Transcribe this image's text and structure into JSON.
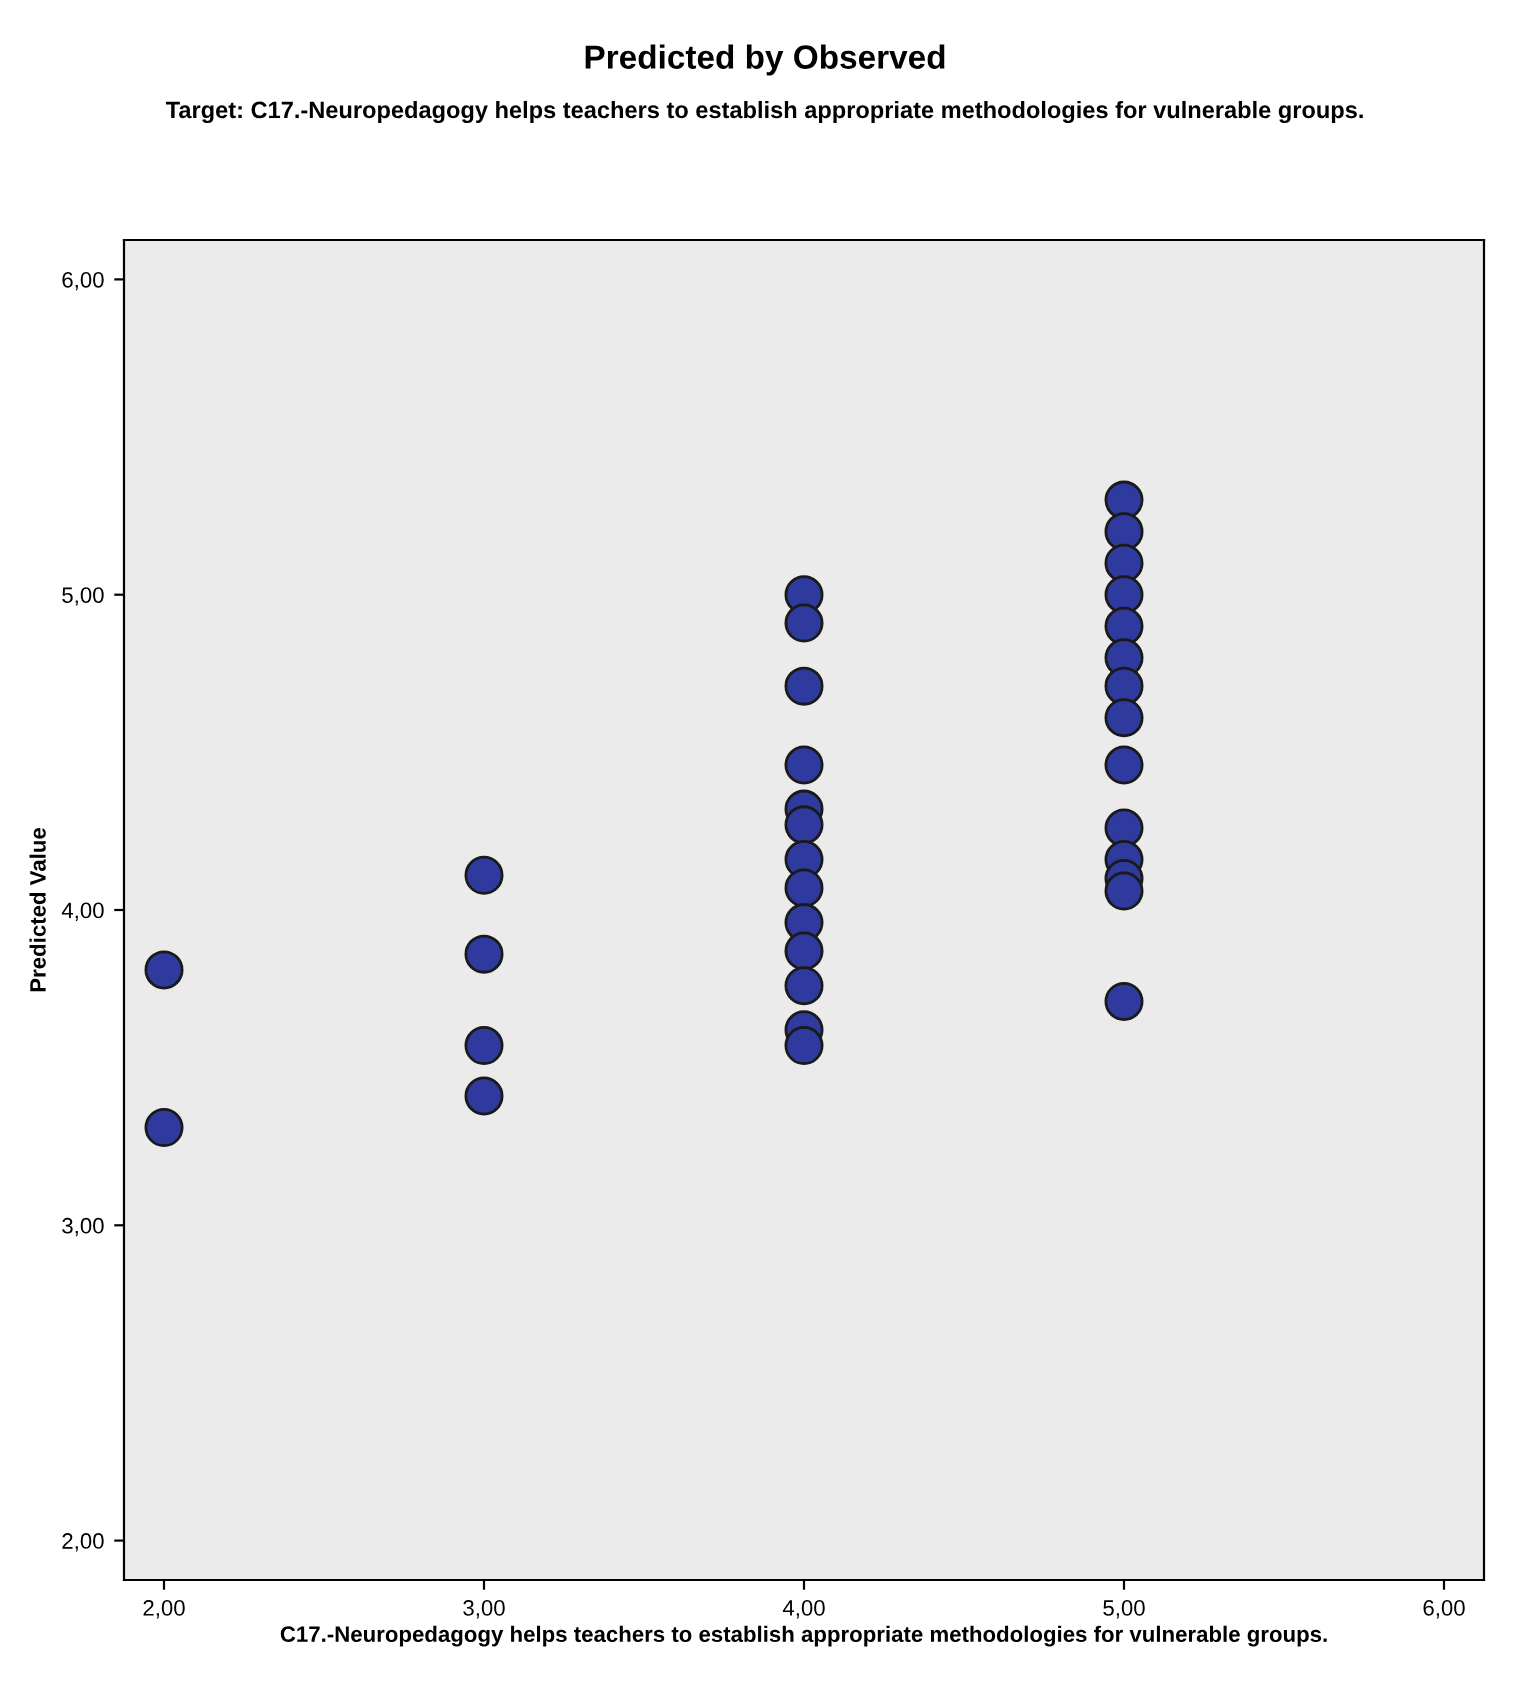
{
  "chart_data": {
    "type": "scatter",
    "title": "Predicted by Observed",
    "subtitle": "Target: C17.-Neuropedagogy helps teachers to establish appropriate methodologies for vulnerable groups.",
    "xlabel": "C17.-Neuropedagogy helps teachers to establish appropriate methodologies for vulnerable groups.",
    "ylabel": "Predicted Value",
    "x": [
      2,
      2,
      3,
      3,
      3,
      3,
      4,
      4,
      4,
      4,
      4,
      4,
      4,
      4,
      4,
      4,
      4,
      4,
      4,
      5,
      5,
      5,
      5,
      5,
      5,
      5,
      5,
      5,
      5,
      5,
      5,
      5,
      5
    ],
    "values": [
      3.81,
      3.31,
      4.11,
      3.86,
      3.57,
      3.41,
      5.0,
      4.91,
      4.71,
      4.46,
      4.32,
      4.27,
      4.16,
      4.07,
      3.96,
      3.87,
      3.76,
      3.62,
      3.57,
      5.3,
      5.2,
      5.1,
      5.0,
      4.9,
      4.8,
      4.71,
      4.61,
      4.46,
      4.26,
      4.16,
      4.1,
      4.06,
      3.71
    ],
    "color": "#2e3a9e",
    "marker": "circle",
    "grid": false,
    "xlim": [
      1.875,
      6.125
    ],
    "ylim": [
      1.875,
      6.125
    ],
    "xticks": [
      {
        "value": 2,
        "label": "2,00"
      },
      {
        "value": 3,
        "label": "3,00"
      },
      {
        "value": 4,
        "label": "4,00"
      },
      {
        "value": 5,
        "label": "5,00"
      },
      {
        "value": 6,
        "label": "6,00"
      }
    ],
    "yticks": [
      {
        "value": 2,
        "label": "2,00"
      },
      {
        "value": 3,
        "label": "3,00"
      },
      {
        "value": 4,
        "label": "4,00"
      },
      {
        "value": 5,
        "label": "5,00"
      },
      {
        "value": 6,
        "label": "6,00"
      }
    ]
  }
}
